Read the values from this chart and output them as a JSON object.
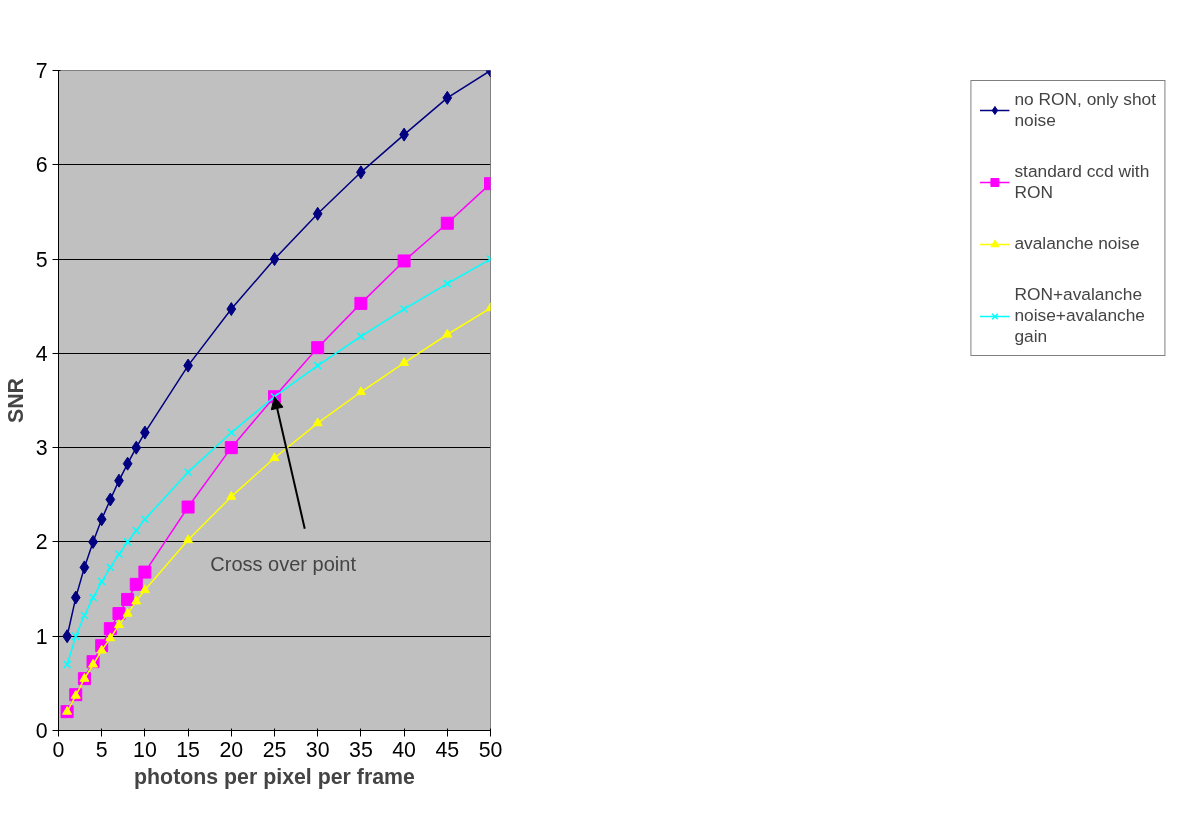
{
  "chart_data": {
    "type": "line",
    "xlabel": "photons per pixel per frame",
    "ylabel": "SNR",
    "x": [
      1,
      2,
      3,
      4,
      5,
      6,
      7,
      8,
      9,
      10,
      15,
      20,
      25,
      30,
      35,
      40,
      45,
      50
    ],
    "series": [
      {
        "name": "no RON, only shot noise",
        "color": "#000080",
        "marker": "diamond",
        "values": [
          1,
          1.41,
          1.73,
          2,
          2.24,
          2.45,
          2.65,
          2.83,
          3,
          3.16,
          3.87,
          4.47,
          5,
          5.48,
          5.92,
          6.32,
          6.71,
          7
        ]
      },
      {
        "name": "standard ccd with RON",
        "color": "#ff00ff",
        "marker": "square",
        "values": [
          0.2,
          0.38,
          0.55,
          0.73,
          0.9,
          1.08,
          1.24,
          1.39,
          1.55,
          1.68,
          2.37,
          3.0,
          3.54,
          4.06,
          4.53,
          4.98,
          5.38,
          5.8
        ]
      },
      {
        "name": "avalanche noise",
        "color": "#ffff00",
        "marker": "triangle",
        "values": [
          0.2,
          0.37,
          0.55,
          0.7,
          0.85,
          0.98,
          1.12,
          1.24,
          1.37,
          1.49,
          2.02,
          2.48,
          2.89,
          3.26,
          3.59,
          3.9,
          4.2,
          4.48
        ]
      },
      {
        "name": "RON+avalanche noise+avalanche gain",
        "color": "#00ffff",
        "marker": "cross",
        "values": [
          0.7,
          1.0,
          1.22,
          1.41,
          1.58,
          1.73,
          1.87,
          2.0,
          2.12,
          2.24,
          2.74,
          3.16,
          3.54,
          3.87,
          4.18,
          4.47,
          4.74,
          5.0
        ]
      }
    ],
    "xlim": [
      0,
      50
    ],
    "xticks": [
      0,
      5,
      10,
      15,
      20,
      25,
      30,
      35,
      40,
      45,
      50
    ],
    "ylim": [
      0,
      7
    ],
    "yticks": [
      0,
      1,
      2,
      3,
      4,
      5,
      6,
      7
    ],
    "grid": "y",
    "legend": "right",
    "annotations": [
      {
        "text": "Cross over point",
        "x": 25,
        "y": 3.54
      }
    ]
  }
}
